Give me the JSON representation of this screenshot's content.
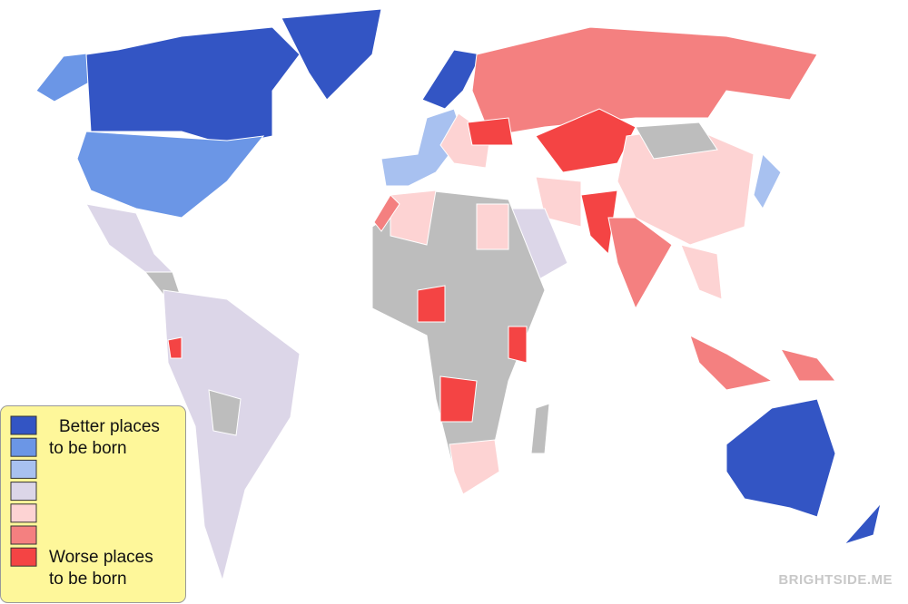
{
  "legend": {
    "colors": [
      "#3355c4",
      "#6b96e6",
      "#a8c1f0",
      "#dcd6e8",
      "#fdd3d3",
      "#f48080",
      "#f44444"
    ],
    "better_lines": [
      "Better places",
      "to be born"
    ],
    "worse_lines": [
      "Worse places",
      "to be born"
    ]
  },
  "watermark": "BRIGHTSIDE.ME"
}
